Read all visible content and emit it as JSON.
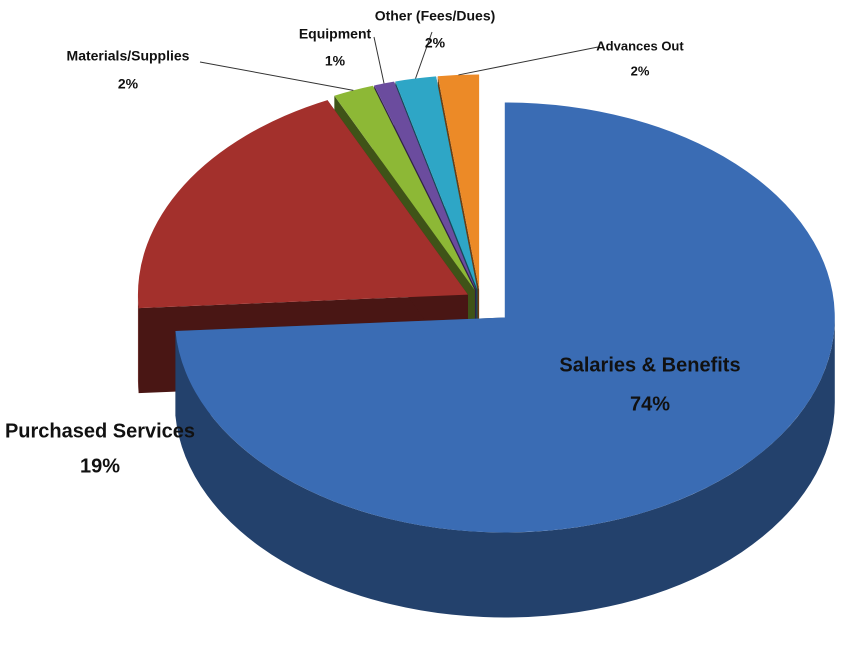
{
  "chart_data": {
    "type": "pie3d",
    "categories": [
      "Salaries & Benefits",
      "Purchased Services",
      "Materials/Supplies",
      "Equipment",
      "Other (Fees/Dues)",
      "Advances Out"
    ],
    "values": [
      74,
      19,
      2,
      1,
      2,
      2
    ],
    "value_labels": [
      "74%",
      "19%",
      "2%",
      "1%",
      "2%",
      "2%"
    ],
    "colors": [
      "#3a6cb4",
      "#a3302c",
      "#8db836",
      "#6b4c9e",
      "#2ea6c6",
      "#ec8a27"
    ]
  }
}
